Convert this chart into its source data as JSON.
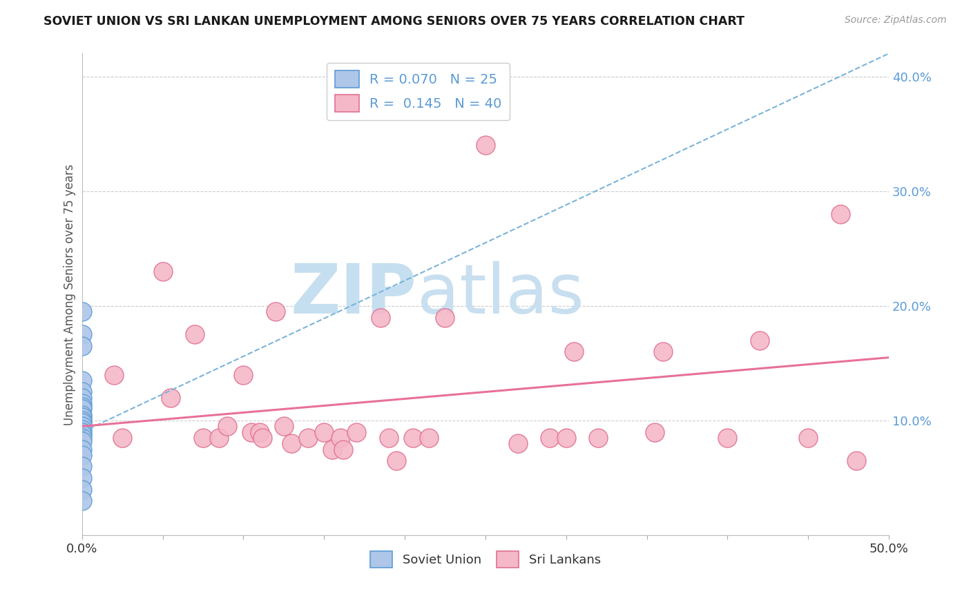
{
  "title": "SOVIET UNION VS SRI LANKAN UNEMPLOYMENT AMONG SENIORS OVER 75 YEARS CORRELATION CHART",
  "source": "Source: ZipAtlas.com",
  "ylabel": "Unemployment Among Seniors over 75 years",
  "xlim": [
    0.0,
    0.5
  ],
  "ylim": [
    0.0,
    0.42
  ],
  "xticks": [
    0.0,
    0.05,
    0.1,
    0.15,
    0.2,
    0.25,
    0.3,
    0.35,
    0.4,
    0.45,
    0.5
  ],
  "yticks": [
    0.0,
    0.1,
    0.2,
    0.3,
    0.4
  ],
  "soviet_R": 0.07,
  "soviet_N": 25,
  "sri_R": 0.145,
  "sri_N": 40,
  "soviet_color": "#aec6e8",
  "soviet_edge": "#5b9bd5",
  "sri_color": "#f4b8c8",
  "sri_edge": "#e07090",
  "trend_soviet_color": "#7ab3d9",
  "trend_sri_color": "#e8709a",
  "soviet_points_x": [
    0.0,
    0.0,
    0.0,
    0.0,
    0.0,
    0.0,
    0.0,
    0.0,
    0.0,
    0.0,
    0.0,
    0.0,
    0.0,
    0.0,
    0.0,
    0.0,
    0.0,
    0.0,
    0.0,
    0.0,
    0.0,
    0.0,
    0.0,
    0.0,
    0.0
  ],
  "soviet_points_y": [
    0.195,
    0.175,
    0.165,
    0.135,
    0.125,
    0.12,
    0.115,
    0.112,
    0.11,
    0.105,
    0.103,
    0.1,
    0.098,
    0.095,
    0.092,
    0.09,
    0.088,
    0.085,
    0.082,
    0.075,
    0.07,
    0.06,
    0.05,
    0.04,
    0.03
  ],
  "sri_points_x": [
    0.02,
    0.025,
    0.05,
    0.055,
    0.07,
    0.075,
    0.085,
    0.09,
    0.1,
    0.105,
    0.11,
    0.112,
    0.12,
    0.125,
    0.13,
    0.14,
    0.15,
    0.155,
    0.16,
    0.162,
    0.17,
    0.185,
    0.19,
    0.195,
    0.205,
    0.215,
    0.225,
    0.25,
    0.27,
    0.29,
    0.3,
    0.305,
    0.32,
    0.355,
    0.36,
    0.4,
    0.42,
    0.45,
    0.47,
    0.48
  ],
  "sri_points_y": [
    0.14,
    0.085,
    0.23,
    0.12,
    0.175,
    0.085,
    0.085,
    0.095,
    0.14,
    0.09,
    0.09,
    0.085,
    0.195,
    0.095,
    0.08,
    0.085,
    0.09,
    0.075,
    0.085,
    0.075,
    0.09,
    0.19,
    0.085,
    0.065,
    0.085,
    0.085,
    0.19,
    0.34,
    0.08,
    0.085,
    0.085,
    0.16,
    0.085,
    0.09,
    0.16,
    0.085,
    0.17,
    0.085,
    0.28,
    0.065
  ],
  "soviet_trend_x0": 0.0,
  "soviet_trend_y0": 0.09,
  "soviet_trend_x1": 0.5,
  "soviet_trend_y1": 0.42,
  "sri_trend_x0": 0.0,
  "sri_trend_y0": 0.095,
  "sri_trend_x1": 0.5,
  "sri_trend_y1": 0.155,
  "watermark_zip": "ZIP",
  "watermark_atlas": "atlas",
  "watermark_color_zip": "#c5dff0",
  "watermark_color_atlas": "#c8dff0",
  "background_color": "#ffffff",
  "grid_color": "#cccccc",
  "grid_style": "--"
}
